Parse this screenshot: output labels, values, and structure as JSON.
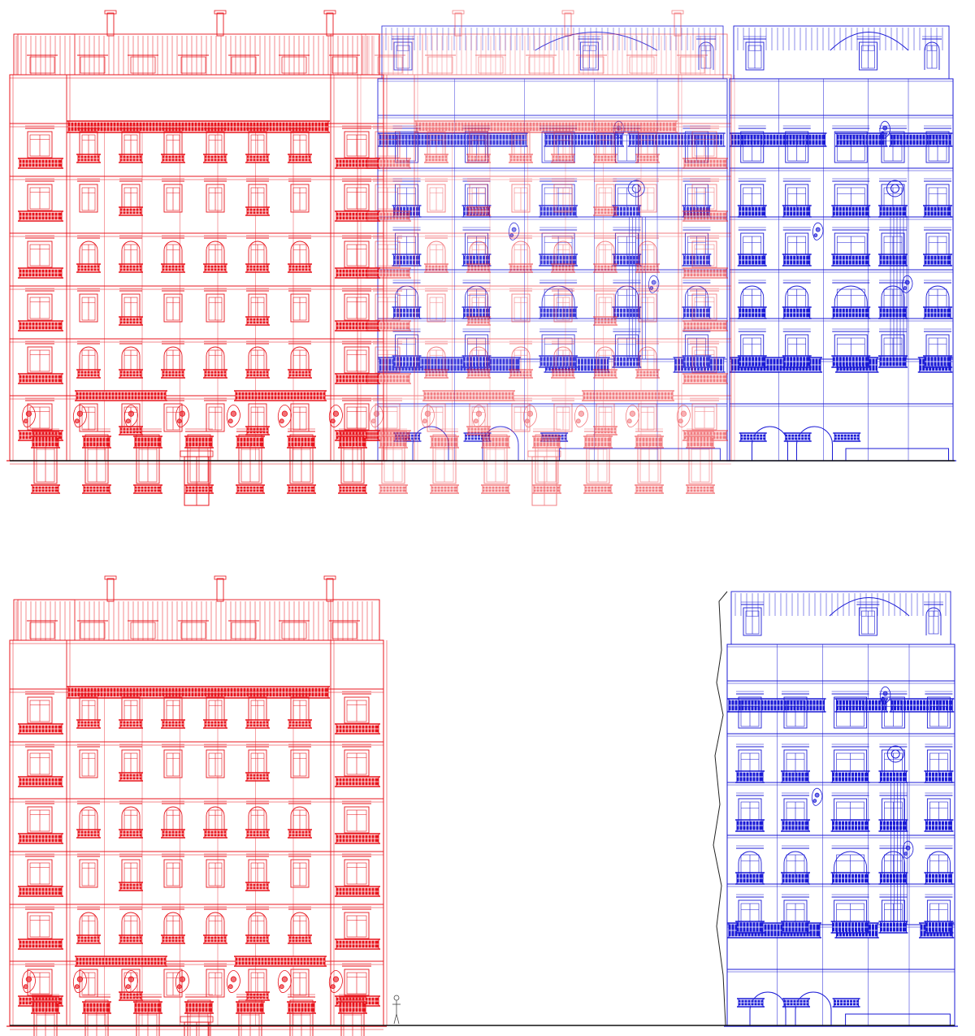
{
  "colors": {
    "background": "#ffffff",
    "red_building": "#e8141c",
    "blue_building": "#1a1ad6",
    "ground": "#111111",
    "party_wall": "#222222"
  },
  "drawings": [
    {
      "name": "overlay-elevation",
      "content": [
        "red-facade",
        "blue-facade"
      ],
      "stacking": "red over blue"
    },
    {
      "name": "separate-elevations",
      "content": [
        "red-facade",
        "blue-facade"
      ]
    }
  ],
  "red_facade": {
    "floors": 8,
    "bays": 7,
    "style": "haussmann"
  },
  "blue_facade": {
    "floors": 8,
    "bays": 5,
    "style": "art-nouveau"
  }
}
